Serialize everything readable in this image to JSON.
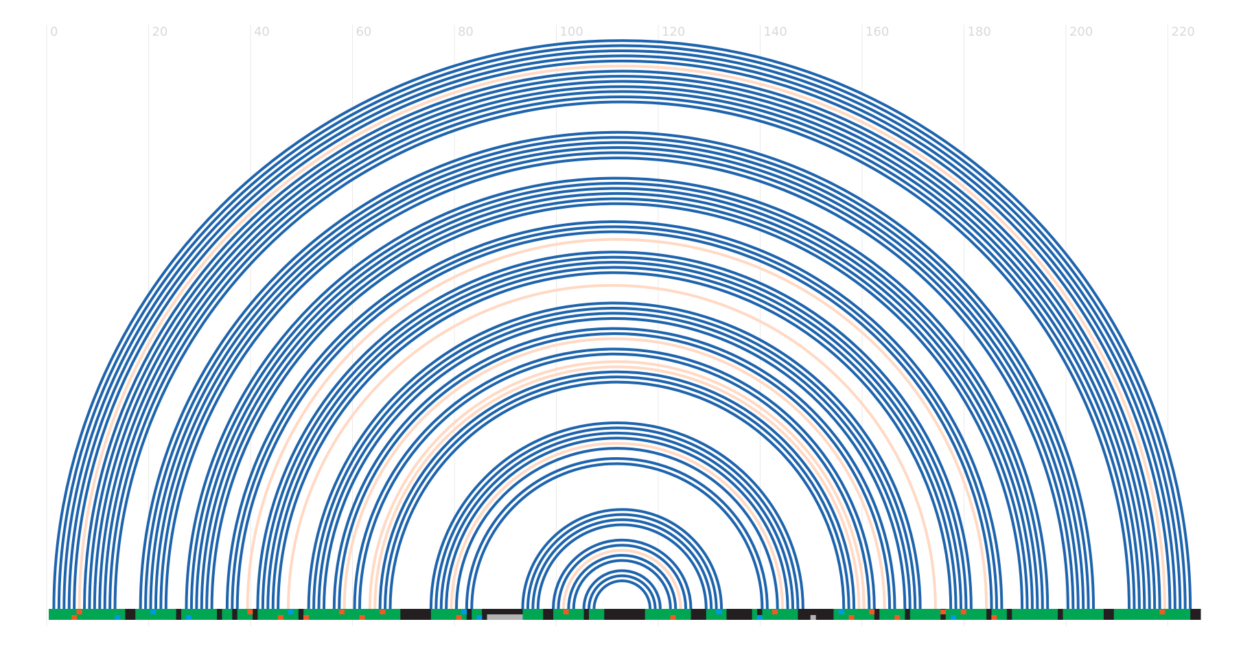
{
  "chart_data": {
    "type": "arc",
    "x_ticks": [
      "0",
      "20",
      "40",
      "60",
      "80",
      "100",
      "120",
      "140",
      "160",
      "180",
      "200",
      "220"
    ],
    "xlim": [
      0,
      226
    ],
    "grid": "vertical",
    "colors": {
      "paired": "#1e64ad",
      "highlight": "#ffd9c4",
      "loop": "#00a651",
      "stem": "#231f20",
      "marker_orange": "#f15a24",
      "marker_blue": "#0099e6",
      "marker_gray": "#b3b3b3",
      "grid": "#e9e9e9",
      "tick_text": "#d9d9d9"
    },
    "arcs": [
      {
        "i": 1,
        "j": 224,
        "kind": "paired"
      },
      {
        "i": 2,
        "j": 223,
        "kind": "paired"
      },
      {
        "i": 3,
        "j": 222,
        "kind": "paired"
      },
      {
        "i": 4,
        "j": 221,
        "kind": "paired"
      },
      {
        "i": 5,
        "j": 220,
        "kind": "paired"
      },
      {
        "i": 6,
        "j": 219,
        "kind": "highlight"
      },
      {
        "i": 7,
        "j": 218,
        "kind": "paired"
      },
      {
        "i": 8,
        "j": 217,
        "kind": "paired"
      },
      {
        "i": 9,
        "j": 216,
        "kind": "paired"
      },
      {
        "i": 10,
        "j": 215,
        "kind": "paired"
      },
      {
        "i": 11,
        "j": 214,
        "kind": "paired"
      },
      {
        "i": 12,
        "j": 213,
        "kind": "paired"
      },
      {
        "i": 13,
        "j": 212,
        "kind": "paired"
      },
      {
        "i": 18,
        "j": 205,
        "kind": "paired"
      },
      {
        "i": 19,
        "j": 204,
        "kind": "paired"
      },
      {
        "i": 20,
        "j": 203,
        "kind": "paired"
      },
      {
        "i": 21,
        "j": 202,
        "kind": "paired"
      },
      {
        "i": 22,
        "j": 201,
        "kind": "paired"
      },
      {
        "i": 23,
        "j": 200,
        "kind": "paired"
      },
      {
        "i": 27,
        "j": 196,
        "kind": "paired"
      },
      {
        "i": 28,
        "j": 195,
        "kind": "paired"
      },
      {
        "i": 29,
        "j": 194,
        "kind": "paired"
      },
      {
        "i": 30,
        "j": 193,
        "kind": "paired"
      },
      {
        "i": 31,
        "j": 192,
        "kind": "paired"
      },
      {
        "i": 32,
        "j": 191,
        "kind": "paired"
      },
      {
        "i": 35,
        "j": 187,
        "kind": "paired"
      },
      {
        "i": 36,
        "j": 186,
        "kind": "paired"
      },
      {
        "i": 37,
        "j": 185,
        "kind": "paired"
      },
      {
        "i": 39,
        "j": 184,
        "kind": "highlight"
      },
      {
        "i": 41,
        "j": 181,
        "kind": "paired"
      },
      {
        "i": 42,
        "j": 180,
        "kind": "paired"
      },
      {
        "i": 43,
        "j": 179,
        "kind": "paired"
      },
      {
        "i": 44,
        "j": 178,
        "kind": "paired"
      },
      {
        "i": 45,
        "j": 177,
        "kind": "paired"
      },
      {
        "i": 47,
        "j": 174,
        "kind": "highlight"
      },
      {
        "i": 51,
        "j": 171,
        "kind": "paired"
      },
      {
        "i": 52,
        "j": 170,
        "kind": "paired"
      },
      {
        "i": 53,
        "j": 169,
        "kind": "paired"
      },
      {
        "i": 54,
        "j": 168,
        "kind": "paired"
      },
      {
        "i": 56,
        "j": 166,
        "kind": "paired"
      },
      {
        "i": 57,
        "j": 165,
        "kind": "paired"
      },
      {
        "i": 58,
        "j": 164,
        "kind": "highlight"
      },
      {
        "i": 60,
        "j": 162,
        "kind": "paired"
      },
      {
        "i": 61,
        "j": 161,
        "kind": "paired"
      },
      {
        "i": 63,
        "j": 160,
        "kind": "highlight"
      },
      {
        "i": 64,
        "j": 159,
        "kind": "highlight"
      },
      {
        "i": 65,
        "j": 158,
        "kind": "paired"
      },
      {
        "i": 66,
        "j": 157,
        "kind": "paired"
      },
      {
        "i": 67,
        "j": 156,
        "kind": "paired"
      },
      {
        "i": 75,
        "j": 148,
        "kind": "paired"
      },
      {
        "i": 76,
        "j": 147,
        "kind": "paired"
      },
      {
        "i": 77,
        "j": 146,
        "kind": "paired"
      },
      {
        "i": 78,
        "j": 145,
        "kind": "paired"
      },
      {
        "i": 79,
        "j": 144,
        "kind": "highlight"
      },
      {
        "i": 80,
        "j": 143,
        "kind": "paired"
      },
      {
        "i": 82,
        "j": 141,
        "kind": "paired"
      },
      {
        "i": 83,
        "j": 140,
        "kind": "paired"
      },
      {
        "i": 93,
        "j": 132,
        "kind": "paired"
      },
      {
        "i": 94,
        "j": 131,
        "kind": "paired"
      },
      {
        "i": 95,
        "j": 130,
        "kind": "paired"
      },
      {
        "i": 96,
        "j": 129,
        "kind": "paired"
      },
      {
        "i": 99,
        "j": 126,
        "kind": "paired"
      },
      {
        "i": 100,
        "j": 125,
        "kind": "paired"
      },
      {
        "i": 101,
        "j": 124,
        "kind": "highlight"
      },
      {
        "i": 102,
        "j": 123,
        "kind": "paired"
      },
      {
        "i": 103,
        "j": 122,
        "kind": "paired"
      },
      {
        "i": 105,
        "j": 120,
        "kind": "paired"
      },
      {
        "i": 106,
        "j": 119,
        "kind": "paired"
      },
      {
        "i": 107,
        "j": 118,
        "kind": "paired"
      }
    ],
    "track": {
      "segments": [
        {
          "start": 0,
          "end": 15,
          "kind": "loop"
        },
        {
          "start": 15,
          "end": 17,
          "kind": "stem"
        },
        {
          "start": 17,
          "end": 25,
          "kind": "loop"
        },
        {
          "start": 25,
          "end": 26,
          "kind": "stem"
        },
        {
          "start": 26,
          "end": 33,
          "kind": "loop"
        },
        {
          "start": 33,
          "end": 34,
          "kind": "stem"
        },
        {
          "start": 34,
          "end": 36,
          "kind": "loop"
        },
        {
          "start": 36,
          "end": 37,
          "kind": "stem"
        },
        {
          "start": 37,
          "end": 40,
          "kind": "loop"
        },
        {
          "start": 40,
          "end": 41,
          "kind": "stem"
        },
        {
          "start": 41,
          "end": 49,
          "kind": "loop"
        },
        {
          "start": 49,
          "end": 50,
          "kind": "stem"
        },
        {
          "start": 50,
          "end": 69,
          "kind": "loop"
        },
        {
          "start": 69,
          "end": 75,
          "kind": "stem"
        },
        {
          "start": 75,
          "end": 82,
          "kind": "loop"
        },
        {
          "start": 82,
          "end": 83,
          "kind": "stem"
        },
        {
          "start": 83,
          "end": 85,
          "kind": "loop"
        },
        {
          "start": 85,
          "end": 93,
          "kind": "stem"
        },
        {
          "start": 93,
          "end": 97,
          "kind": "loop"
        },
        {
          "start": 97,
          "end": 99,
          "kind": "stem"
        },
        {
          "start": 99,
          "end": 105,
          "kind": "loop"
        },
        {
          "start": 105,
          "end": 106,
          "kind": "stem"
        },
        {
          "start": 106,
          "end": 109,
          "kind": "loop"
        },
        {
          "start": 109,
          "end": 117,
          "kind": "stem"
        },
        {
          "start": 117,
          "end": 126,
          "kind": "loop"
        },
        {
          "start": 126,
          "end": 129,
          "kind": "stem"
        },
        {
          "start": 129,
          "end": 133,
          "kind": "loop"
        },
        {
          "start": 133,
          "end": 138,
          "kind": "stem"
        },
        {
          "start": 138,
          "end": 139,
          "kind": "loop"
        },
        {
          "start": 139,
          "end": 140,
          "kind": "stem"
        },
        {
          "start": 140,
          "end": 147,
          "kind": "loop"
        },
        {
          "start": 147,
          "end": 154,
          "kind": "stem"
        },
        {
          "start": 154,
          "end": 162,
          "kind": "loop"
        },
        {
          "start": 162,
          "end": 163,
          "kind": "stem"
        },
        {
          "start": 163,
          "end": 168,
          "kind": "loop"
        },
        {
          "start": 168,
          "end": 169,
          "kind": "stem"
        },
        {
          "start": 169,
          "end": 175,
          "kind": "loop"
        },
        {
          "start": 175,
          "end": 176,
          "kind": "stem"
        },
        {
          "start": 176,
          "end": 184,
          "kind": "loop"
        },
        {
          "start": 184,
          "end": 185,
          "kind": "stem"
        },
        {
          "start": 185,
          "end": 188,
          "kind": "loop"
        },
        {
          "start": 188,
          "end": 189,
          "kind": "stem"
        },
        {
          "start": 189,
          "end": 198,
          "kind": "loop"
        },
        {
          "start": 198,
          "end": 199,
          "kind": "stem"
        },
        {
          "start": 199,
          "end": 207,
          "kind": "loop"
        },
        {
          "start": 207,
          "end": 209,
          "kind": "stem"
        },
        {
          "start": 209,
          "end": 224,
          "kind": "loop"
        },
        {
          "start": 224,
          "end": 226,
          "kind": "stem"
        }
      ],
      "markers": [
        {
          "pos": 5,
          "kind": "marker_orange"
        },
        {
          "pos": 6,
          "kind": "marker_orange"
        },
        {
          "pos": 13.5,
          "kind": "marker_blue"
        },
        {
          "pos": 20.5,
          "kind": "marker_blue"
        },
        {
          "pos": 27.5,
          "kind": "marker_blue"
        },
        {
          "pos": 39.5,
          "kind": "marker_orange"
        },
        {
          "pos": 45.5,
          "kind": "marker_orange"
        },
        {
          "pos": 47.5,
          "kind": "marker_blue"
        },
        {
          "pos": 50.5,
          "kind": "marker_orange"
        },
        {
          "pos": 57.5,
          "kind": "marker_orange"
        },
        {
          "pos": 61.5,
          "kind": "marker_orange"
        },
        {
          "pos": 65.5,
          "kind": "marker_orange"
        },
        {
          "pos": 80.5,
          "kind": "marker_orange"
        },
        {
          "pos": 81.5,
          "kind": "marker_blue"
        },
        {
          "pos": 84.5,
          "kind": "marker_blue"
        },
        {
          "pos": 101.5,
          "kind": "marker_orange"
        },
        {
          "pos": 122.5,
          "kind": "marker_orange"
        },
        {
          "pos": 131.5,
          "kind": "marker_blue"
        },
        {
          "pos": 139.5,
          "kind": "marker_blue"
        },
        {
          "pos": 142.5,
          "kind": "marker_orange"
        },
        {
          "pos": 150,
          "kind": "marker_gray"
        },
        {
          "pos": 155.5,
          "kind": "marker_blue"
        },
        {
          "pos": 157.5,
          "kind": "marker_orange"
        },
        {
          "pos": 161.5,
          "kind": "marker_orange"
        },
        {
          "pos": 166.5,
          "kind": "marker_orange"
        },
        {
          "pos": 175.5,
          "kind": "marker_orange"
        },
        {
          "pos": 177.5,
          "kind": "marker_blue"
        },
        {
          "pos": 179.5,
          "kind": "marker_orange"
        },
        {
          "pos": 185.5,
          "kind": "marker_orange"
        },
        {
          "pos": 218.5,
          "kind": "marker_orange"
        }
      ],
      "gray_bar": {
        "start": 86,
        "end": 93
      }
    }
  }
}
